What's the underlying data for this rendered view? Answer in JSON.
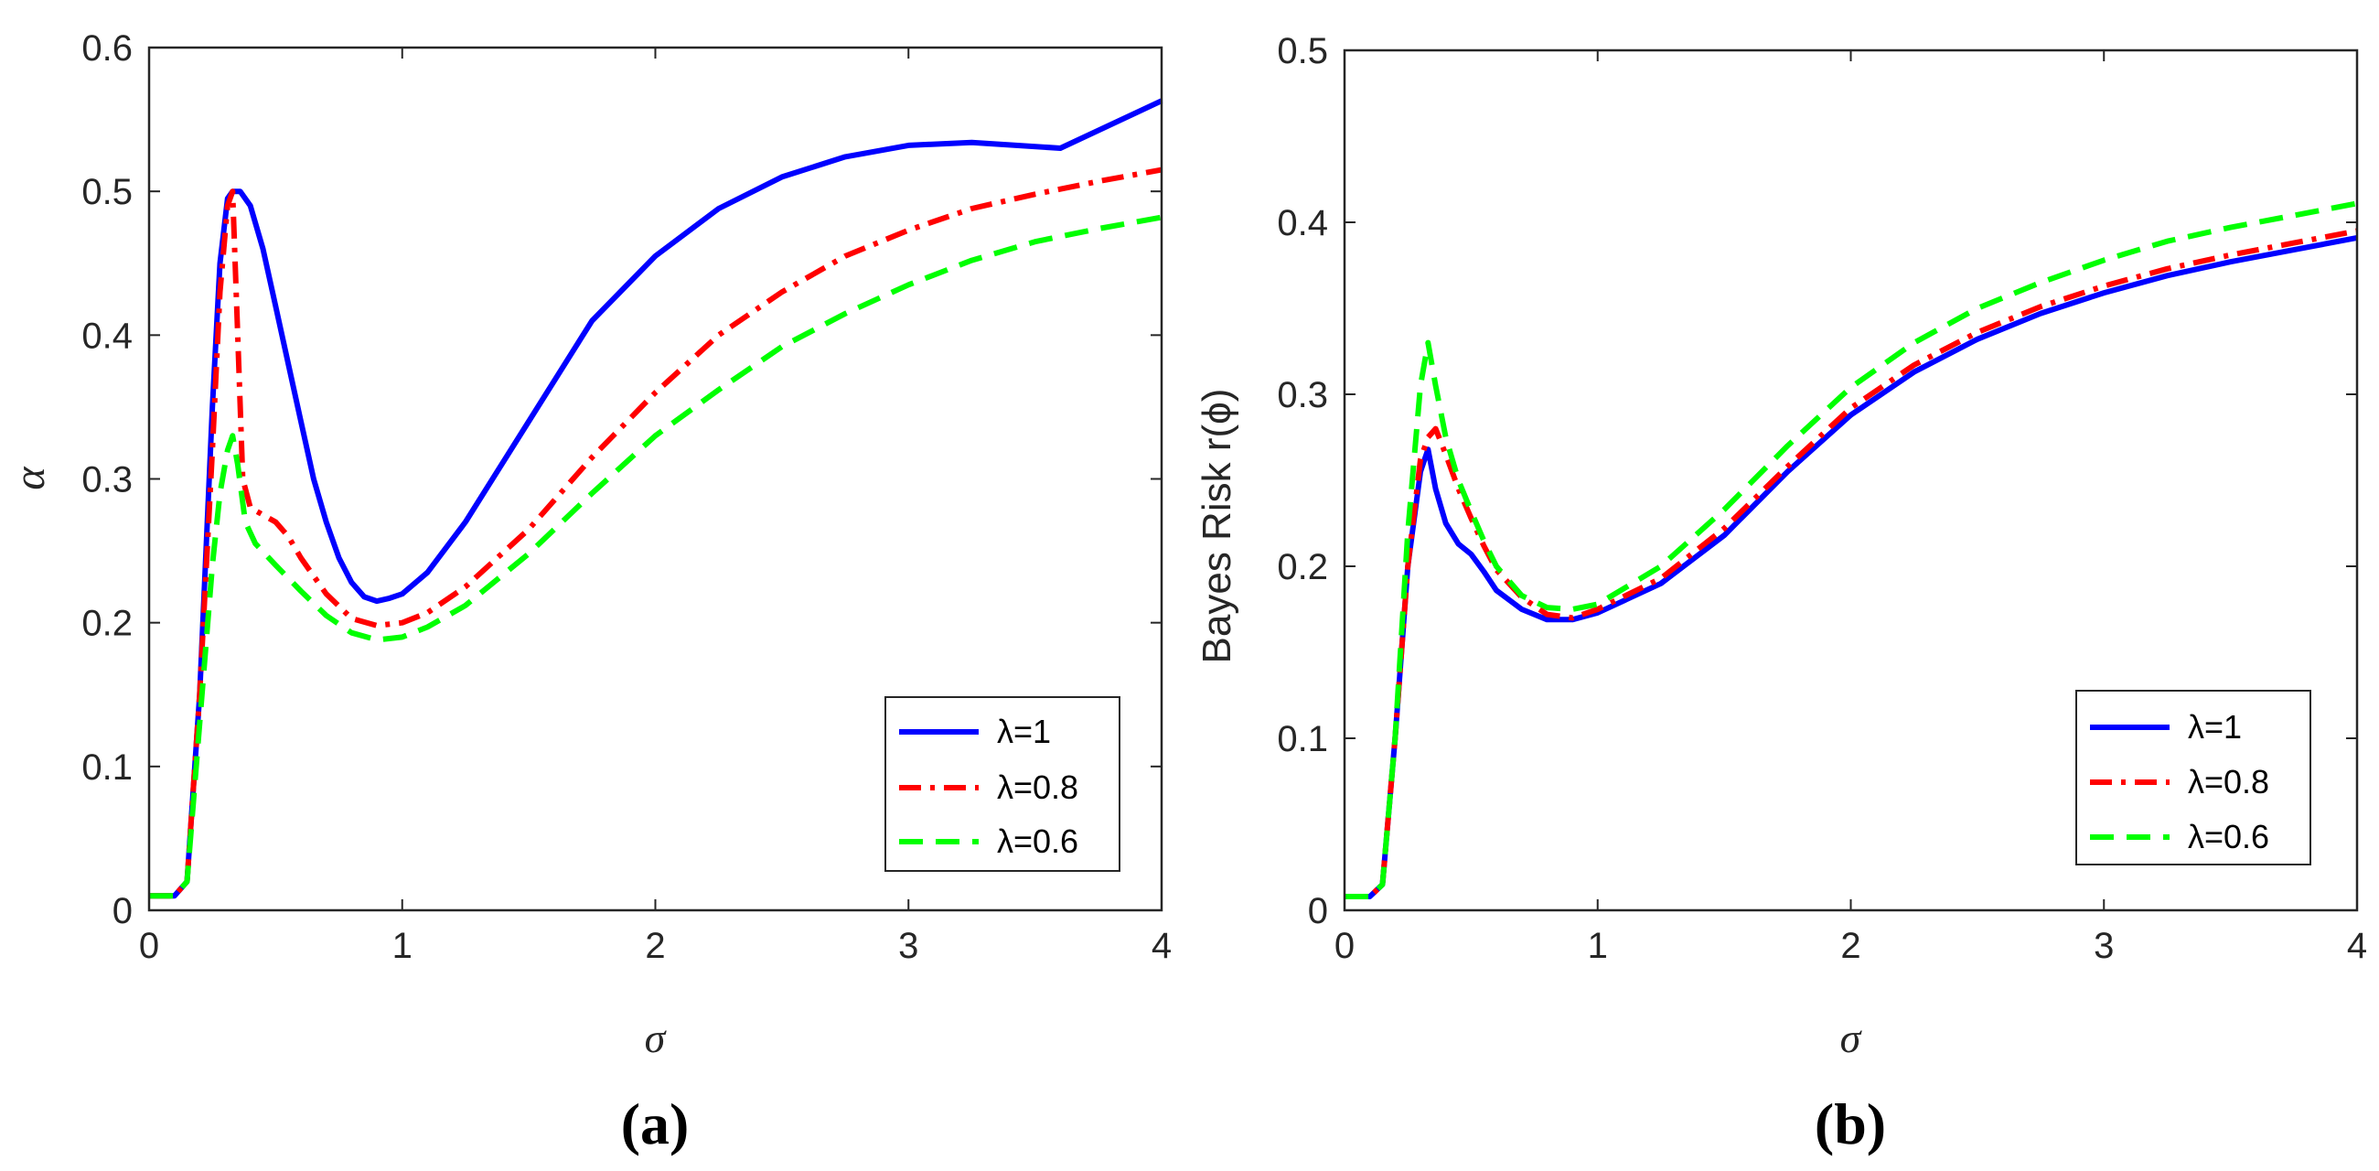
{
  "colors": {
    "series_0": "#0000ff",
    "series_1": "#ff0000",
    "series_2": "#00ff00",
    "axis": "#262626",
    "background": "#ffffff"
  },
  "chart_data": [
    {
      "type": "line",
      "panel_label": "(a)",
      "xlabel": "σ",
      "ylabel": "α",
      "xlim": [
        0,
        4
      ],
      "ylim": [
        0,
        0.6
      ],
      "xticks": [
        0,
        1,
        2,
        3,
        4
      ],
      "xtick_labels": [
        "0",
        "1",
        "2",
        "3",
        "4"
      ],
      "yticks": [
        0,
        0.1,
        0.2,
        0.3,
        0.4,
        0.5,
        0.6
      ],
      "ytick_labels": [
        "0",
        "0.1",
        "0.2",
        "0.3",
        "0.4",
        "0.5",
        "0.6"
      ],
      "grid": false,
      "legend_position": "bottom-right",
      "series": [
        {
          "name": "λ=1",
          "style": "solid",
          "points": [
            [
              0,
              0.01
            ],
            [
              0.1,
              0.01
            ],
            [
              0.15,
              0.02
            ],
            [
              0.2,
              0.15
            ],
            [
              0.25,
              0.35
            ],
            [
              0.28,
              0.45
            ],
            [
              0.31,
              0.495
            ],
            [
              0.33,
              0.5
            ],
            [
              0.36,
              0.5
            ],
            [
              0.4,
              0.49
            ],
            [
              0.45,
              0.46
            ],
            [
              0.5,
              0.42
            ],
            [
              0.55,
              0.38
            ],
            [
              0.6,
              0.34
            ],
            [
              0.65,
              0.3
            ],
            [
              0.7,
              0.27
            ],
            [
              0.75,
              0.245
            ],
            [
              0.8,
              0.228
            ],
            [
              0.85,
              0.218
            ],
            [
              0.9,
              0.215
            ],
            [
              0.95,
              0.217
            ],
            [
              1.0,
              0.22
            ],
            [
              1.1,
              0.235
            ],
            [
              1.25,
              0.27
            ],
            [
              1.5,
              0.34
            ],
            [
              1.75,
              0.41
            ],
            [
              2.0,
              0.455
            ],
            [
              2.25,
              0.488
            ],
            [
              2.5,
              0.51
            ],
            [
              2.75,
              0.524
            ],
            [
              3.0,
              0.532
            ],
            [
              3.25,
              0.534
            ],
            [
              3.6,
              0.53
            ],
            [
              4.0,
              0.563
            ]
          ]
        },
        {
          "name": "λ=0.8",
          "style": "dashdot",
          "points": [
            [
              0,
              0.01
            ],
            [
              0.1,
              0.01
            ],
            [
              0.15,
              0.02
            ],
            [
              0.2,
              0.15
            ],
            [
              0.25,
              0.32
            ],
            [
              0.28,
              0.43
            ],
            [
              0.31,
              0.49
            ],
            [
              0.33,
              0.5
            ],
            [
              0.35,
              0.4
            ],
            [
              0.37,
              0.3
            ],
            [
              0.4,
              0.28
            ],
            [
              0.45,
              0.275
            ],
            [
              0.5,
              0.27
            ],
            [
              0.55,
              0.26
            ],
            [
              0.6,
              0.245
            ],
            [
              0.7,
              0.22
            ],
            [
              0.8,
              0.203
            ],
            [
              0.9,
              0.198
            ],
            [
              1.0,
              0.2
            ],
            [
              1.1,
              0.207
            ],
            [
              1.25,
              0.225
            ],
            [
              1.5,
              0.265
            ],
            [
              1.75,
              0.315
            ],
            [
              2.0,
              0.36
            ],
            [
              2.25,
              0.4
            ],
            [
              2.5,
              0.43
            ],
            [
              2.75,
              0.455
            ],
            [
              3.0,
              0.473
            ],
            [
              3.25,
              0.488
            ],
            [
              3.5,
              0.498
            ],
            [
              3.75,
              0.507
            ],
            [
              4.0,
              0.515
            ]
          ]
        },
        {
          "name": "λ=0.6",
          "style": "dashed",
          "points": [
            [
              0,
              0.01
            ],
            [
              0.1,
              0.01
            ],
            [
              0.15,
              0.02
            ],
            [
              0.2,
              0.13
            ],
            [
              0.25,
              0.24
            ],
            [
              0.28,
              0.29
            ],
            [
              0.31,
              0.32
            ],
            [
              0.33,
              0.33
            ],
            [
              0.35,
              0.31
            ],
            [
              0.38,
              0.27
            ],
            [
              0.42,
              0.255
            ],
            [
              0.5,
              0.24
            ],
            [
              0.6,
              0.222
            ],
            [
              0.7,
              0.205
            ],
            [
              0.8,
              0.193
            ],
            [
              0.9,
              0.188
            ],
            [
              1.0,
              0.19
            ],
            [
              1.1,
              0.197
            ],
            [
              1.25,
              0.212
            ],
            [
              1.5,
              0.248
            ],
            [
              1.75,
              0.29
            ],
            [
              2.0,
              0.33
            ],
            [
              2.25,
              0.362
            ],
            [
              2.5,
              0.392
            ],
            [
              2.75,
              0.415
            ],
            [
              3.0,
              0.435
            ],
            [
              3.25,
              0.452
            ],
            [
              3.5,
              0.465
            ],
            [
              3.75,
              0.474
            ],
            [
              4.0,
              0.482
            ]
          ]
        }
      ]
    },
    {
      "type": "line",
      "panel_label": "(b)",
      "xlabel": "σ",
      "ylabel": "Bayes Risk r(ϕ)",
      "xlim": [
        0,
        4
      ],
      "ylim": [
        0,
        0.5
      ],
      "xticks": [
        0,
        1,
        2,
        3,
        4
      ],
      "xtick_labels": [
        "0",
        "1",
        "2",
        "3",
        "4"
      ],
      "yticks": [
        0,
        0.1,
        0.2,
        0.3,
        0.4,
        0.5
      ],
      "ytick_labels": [
        "0",
        "0.1",
        "0.2",
        "0.3",
        "0.4",
        "0.5"
      ],
      "grid": false,
      "legend_position": "bottom-right",
      "series": [
        {
          "name": "λ=1",
          "style": "solid",
          "points": [
            [
              0,
              0.008
            ],
            [
              0.1,
              0.008
            ],
            [
              0.15,
              0.015
            ],
            [
              0.2,
              0.1
            ],
            [
              0.25,
              0.2
            ],
            [
              0.3,
              0.255
            ],
            [
              0.33,
              0.268
            ],
            [
              0.36,
              0.245
            ],
            [
              0.4,
              0.225
            ],
            [
              0.45,
              0.213
            ],
            [
              0.5,
              0.207
            ],
            [
              0.55,
              0.197
            ],
            [
              0.6,
              0.186
            ],
            [
              0.7,
              0.175
            ],
            [
              0.8,
              0.169
            ],
            [
              0.9,
              0.169
            ],
            [
              1.0,
              0.173
            ],
            [
              1.25,
              0.19
            ],
            [
              1.5,
              0.218
            ],
            [
              1.75,
              0.255
            ],
            [
              2.0,
              0.288
            ],
            [
              2.25,
              0.313
            ],
            [
              2.5,
              0.332
            ],
            [
              2.75,
              0.347
            ],
            [
              3.0,
              0.359
            ],
            [
              3.25,
              0.369
            ],
            [
              3.5,
              0.377
            ],
            [
              3.75,
              0.384
            ],
            [
              4.0,
              0.391
            ]
          ]
        },
        {
          "name": "λ=0.8",
          "style": "dashdot",
          "points": [
            [
              0,
              0.008
            ],
            [
              0.1,
              0.008
            ],
            [
              0.15,
              0.015
            ],
            [
              0.2,
              0.1
            ],
            [
              0.25,
              0.2
            ],
            [
              0.3,
              0.262
            ],
            [
              0.33,
              0.275
            ],
            [
              0.36,
              0.28
            ],
            [
              0.4,
              0.265
            ],
            [
              0.45,
              0.245
            ],
            [
              0.5,
              0.228
            ],
            [
              0.55,
              0.212
            ],
            [
              0.6,
              0.198
            ],
            [
              0.7,
              0.182
            ],
            [
              0.8,
              0.172
            ],
            [
              0.9,
              0.17
            ],
            [
              1.0,
              0.175
            ],
            [
              1.25,
              0.193
            ],
            [
              1.5,
              0.222
            ],
            [
              1.75,
              0.258
            ],
            [
              2.0,
              0.292
            ],
            [
              2.25,
              0.317
            ],
            [
              2.5,
              0.336
            ],
            [
              2.75,
              0.351
            ],
            [
              3.0,
              0.363
            ],
            [
              3.25,
              0.373
            ],
            [
              3.5,
              0.381
            ],
            [
              3.75,
              0.388
            ],
            [
              4.0,
              0.395
            ]
          ]
        },
        {
          "name": "λ=0.6",
          "style": "dashed",
          "points": [
            [
              0,
              0.008
            ],
            [
              0.1,
              0.008
            ],
            [
              0.15,
              0.015
            ],
            [
              0.2,
              0.1
            ],
            [
              0.25,
              0.22
            ],
            [
              0.3,
              0.305
            ],
            [
              0.33,
              0.33
            ],
            [
              0.36,
              0.305
            ],
            [
              0.4,
              0.275
            ],
            [
              0.45,
              0.25
            ],
            [
              0.5,
              0.232
            ],
            [
              0.55,
              0.215
            ],
            [
              0.6,
              0.2
            ],
            [
              0.7,
              0.183
            ],
            [
              0.8,
              0.176
            ],
            [
              0.9,
              0.175
            ],
            [
              1.0,
              0.178
            ],
            [
              1.25,
              0.2
            ],
            [
              1.5,
              0.233
            ],
            [
              1.75,
              0.27
            ],
            [
              2.0,
              0.304
            ],
            [
              2.25,
              0.33
            ],
            [
              2.5,
              0.35
            ],
            [
              2.75,
              0.365
            ],
            [
              3.0,
              0.378
            ],
            [
              3.25,
              0.389
            ],
            [
              3.5,
              0.397
            ],
            [
              3.75,
              0.404
            ],
            [
              4.0,
              0.411
            ]
          ]
        }
      ]
    }
  ]
}
